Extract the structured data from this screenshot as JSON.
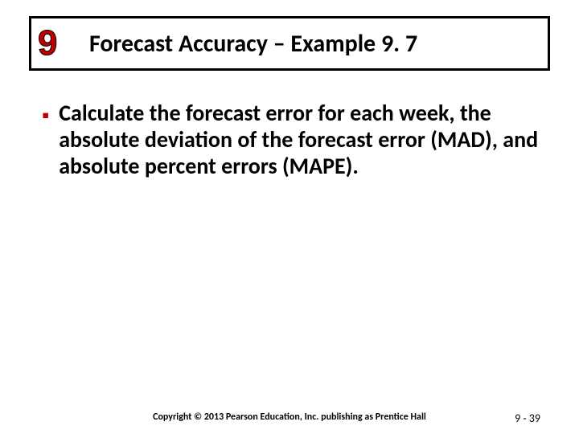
{
  "header": {
    "chapter_number": "9",
    "title": "Forecast Accuracy – Example 9. 7"
  },
  "body": {
    "bullets": [
      "Calculate the forecast error for each week, the absolute deviation of the forecast error (MAD), and absolute percent errors (MAPE)."
    ]
  },
  "footer": {
    "copyright": "Copyright © 2013 Pearson Education, Inc. publishing as Prentice Hall",
    "page_number": "9 - 39"
  },
  "style": {
    "accent_color": "#c00000",
    "border_color": "#000000",
    "background_color": "#ffffff",
    "title_fontsize_pt": 30,
    "body_fontsize_pt": 28,
    "footer_fontsize_pt": 12,
    "chapter_badge_fontsize_pt": 44,
    "font_family": "Calibri"
  }
}
